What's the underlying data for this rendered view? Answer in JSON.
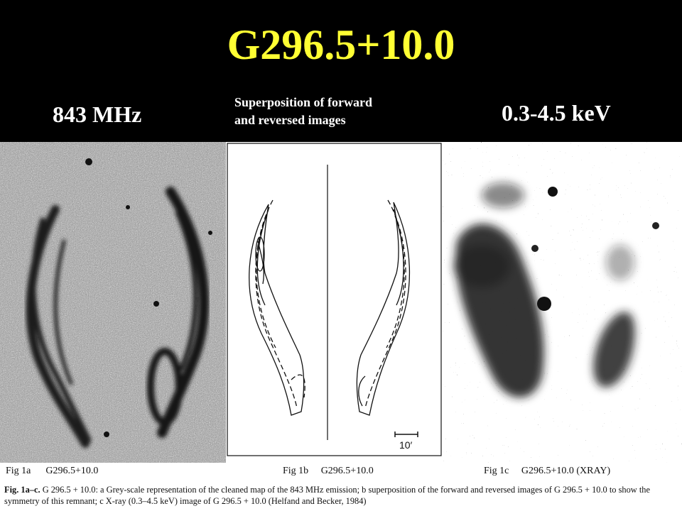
{
  "title": "G296.5+10.0",
  "labels": {
    "left": "843 MHz",
    "middle_line1": "Superposition of forward",
    "middle_line2": "and reversed images",
    "right": "0.3-4.5 keV"
  },
  "figures": {
    "fig1a_label": "Fig 1a",
    "fig1a_name": "G296.5+10.0",
    "fig1b_label": "Fig 1b",
    "fig1b_name": "G296.5+10.0",
    "fig1b_scale": "10′",
    "fig1c_label": "Fig 1c",
    "fig1c_name": "G296.5+10.0 (XRAY)"
  },
  "caption": {
    "prefix": "Fig. 1a–c.",
    "text": " G 296.5 + 10.0: a Grey-scale representation of the cleaned map of the 843 MHz emission; b superposition of the forward and reversed images of G 296.5 + 10.0 to show the symmetry of this remnant; c X-ray (0.3–4.5 keV) image of G 296.5 + 10.0 (Helfand and Becker, 1984)"
  },
  "colors": {
    "background": "#000000",
    "title": "#ffff33",
    "label": "#ffffff"
  }
}
